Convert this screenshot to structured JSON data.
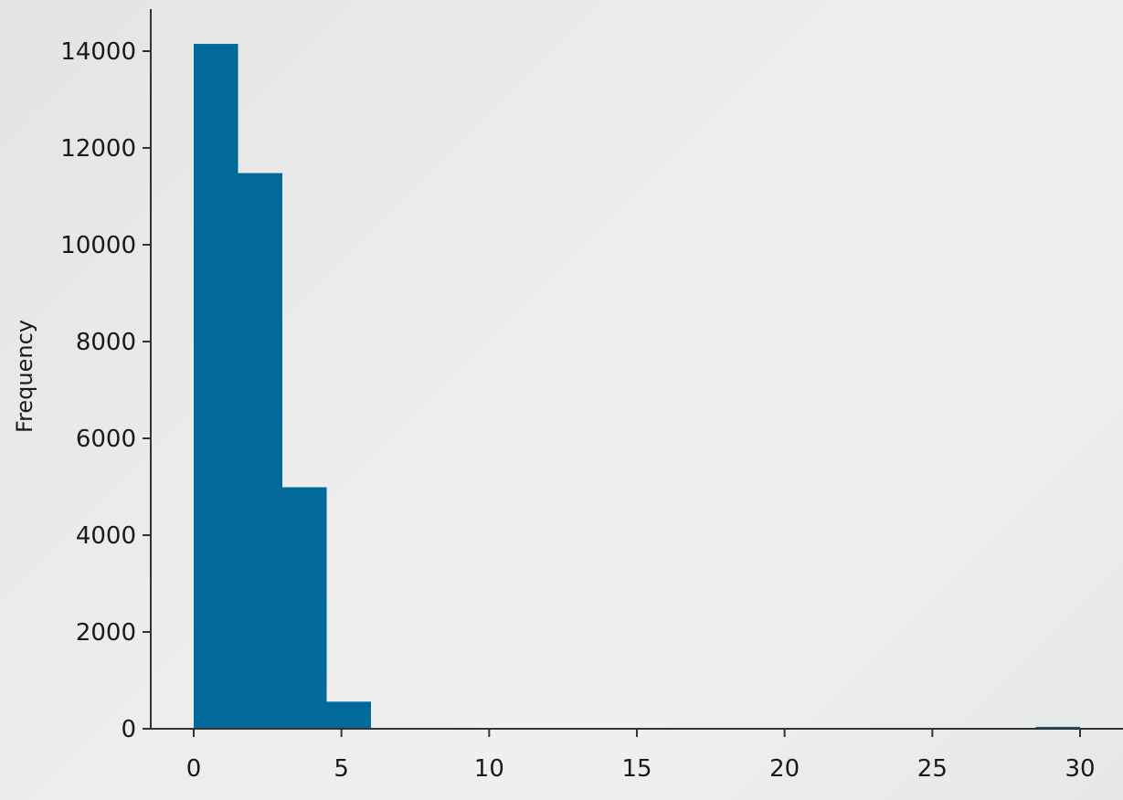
{
  "chart_data": {
    "type": "bar",
    "subtype": "histogram",
    "title": "",
    "xlabel": "",
    "ylabel": "Frequency",
    "bin_edges": [
      0,
      1.5,
      3,
      4.5,
      6,
      7.5,
      9,
      10.5,
      12,
      13.5,
      15,
      16.5,
      18,
      19.5,
      21,
      22.5,
      24,
      25.5,
      27,
      28.5,
      30
    ],
    "values": [
      14150,
      11480,
      4990,
      560,
      0,
      0,
      0,
      0,
      0,
      0,
      0,
      0,
      0,
      0,
      0,
      0,
      0,
      0,
      0,
      40
    ],
    "xlim": [
      -1.5,
      31.5
    ],
    "ylim": [
      0,
      14850
    ],
    "x_ticks": [
      0,
      5,
      10,
      15,
      20,
      25,
      30
    ],
    "x_tick_labels": [
      "0",
      "5",
      "10",
      "15",
      "20",
      "25",
      "30"
    ],
    "y_ticks": [
      0,
      2000,
      4000,
      6000,
      8000,
      10000,
      12000,
      14000
    ],
    "y_tick_labels": [
      "0",
      "2000",
      "4000",
      "6000",
      "8000",
      "10000",
      "12000",
      "14000"
    ],
    "bar_color": "#016a9a",
    "grid": false,
    "legend": "none"
  }
}
